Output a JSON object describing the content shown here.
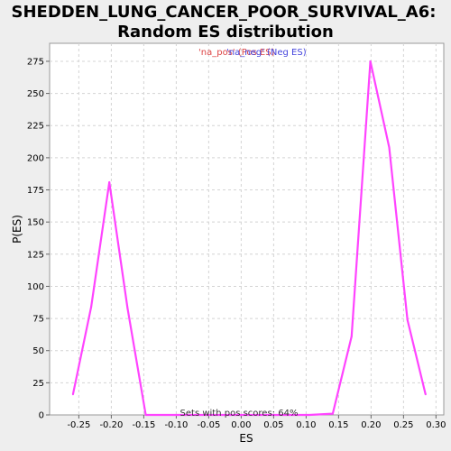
{
  "chart_data": {
    "type": "line",
    "title_lines": [
      "SHEDDEN_LUNG_CANCER_POOR_SURVIVAL_A6:",
      "Random ES distribution"
    ],
    "xlabel": "ES",
    "ylabel": "P(ES)",
    "xlim": [
      -0.295,
      0.312
    ],
    "ylim": [
      0,
      289
    ],
    "xticks": [
      -0.25,
      -0.2,
      -0.15,
      -0.1,
      -0.05,
      0.0,
      0.05,
      0.1,
      0.15,
      0.2,
      0.25,
      0.3
    ],
    "xtick_labels": [
      "-0.25",
      "-0.20",
      "-0.15",
      "-0.10",
      "-0.05",
      "0.00",
      "0.05",
      "0.10",
      "0.15",
      "0.20",
      "0.25",
      "0.30"
    ],
    "yticks": [
      0,
      25,
      50,
      75,
      100,
      125,
      150,
      175,
      200,
      225,
      250,
      275
    ],
    "ytick_labels": [
      "0",
      "25",
      "50",
      "75",
      "100",
      "125",
      "150",
      "175",
      "200",
      "225",
      "250",
      "275"
    ],
    "grid": true,
    "legend": [
      {
        "label": "'na_pos' (Pos ES)",
        "color": "#dd4444"
      },
      {
        "label": "'na_neg' (Neg ES)",
        "color": "#4444dd"
      }
    ],
    "annotation": "Sets with pos scores: 64%",
    "series": [
      {
        "color": "#ff44ff",
        "x": [
          -0.259,
          -0.231,
          -0.203,
          -0.175,
          -0.147,
          -0.119,
          -0.091,
          -0.063,
          -0.035,
          -0.007,
          0.021,
          0.049,
          0.077,
          0.105,
          0.141,
          0.17,
          0.199,
          0.228,
          0.256,
          0.284
        ],
        "y": [
          16,
          84,
          181,
          83,
          0,
          0,
          0,
          0,
          0,
          0,
          0,
          0,
          0,
          0,
          1,
          61,
          275,
          208,
          74,
          16
        ]
      }
    ]
  }
}
